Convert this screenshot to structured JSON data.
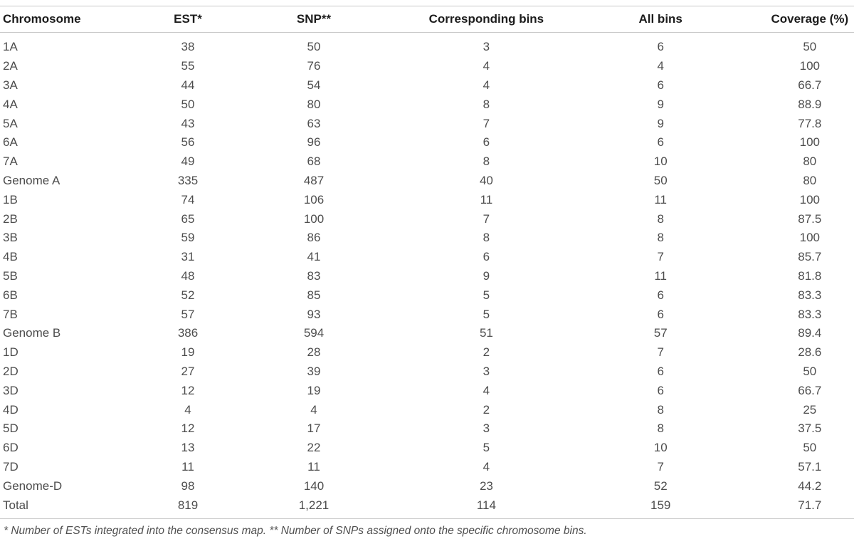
{
  "table": {
    "columns": [
      {
        "key": "chromosome",
        "label": "Chromosome"
      },
      {
        "key": "est",
        "label": "EST*"
      },
      {
        "key": "snp",
        "label": "SNP**"
      },
      {
        "key": "corresponding-bins",
        "label": "Corresponding bins"
      },
      {
        "key": "all-bins",
        "label": "All bins"
      },
      {
        "key": "coverage",
        "label": "Coverage (%)"
      }
    ],
    "rows": [
      [
        "1A",
        "38",
        "50",
        "3",
        "6",
        "50"
      ],
      [
        "2A",
        "55",
        "76",
        "4",
        "4",
        "100"
      ],
      [
        "3A",
        "44",
        "54",
        "4",
        "6",
        "66.7"
      ],
      [
        "4A",
        "50",
        "80",
        "8",
        "9",
        "88.9"
      ],
      [
        "5A",
        "43",
        "63",
        "7",
        "9",
        "77.8"
      ],
      [
        "6A",
        "56",
        "96",
        "6",
        "6",
        "100"
      ],
      [
        "7A",
        "49",
        "68",
        "8",
        "10",
        "80"
      ],
      [
        "Genome A",
        "335",
        "487",
        "40",
        "50",
        "80"
      ],
      [
        "1B",
        "74",
        "106",
        "11",
        "11",
        "100"
      ],
      [
        "2B",
        "65",
        "100",
        "7",
        "8",
        "87.5"
      ],
      [
        "3B",
        "59",
        "86",
        "8",
        "8",
        "100"
      ],
      [
        "4B",
        "31",
        "41",
        "6",
        "7",
        "85.7"
      ],
      [
        "5B",
        "48",
        "83",
        "9",
        "11",
        "81.8"
      ],
      [
        "6B",
        "52",
        "85",
        "5",
        "6",
        "83.3"
      ],
      [
        "7B",
        "57",
        "93",
        "5",
        "6",
        "83.3"
      ],
      [
        "Genome B",
        "386",
        "594",
        "51",
        "57",
        "89.4"
      ],
      [
        "1D",
        "19",
        "28",
        "2",
        "7",
        "28.6"
      ],
      [
        "2D",
        "27",
        "39",
        "3",
        "6",
        "50"
      ],
      [
        "3D",
        "12",
        "19",
        "4",
        "6",
        "66.7"
      ],
      [
        "4D",
        "4",
        "4",
        "2",
        "8",
        "25"
      ],
      [
        "5D",
        "12",
        "17",
        "3",
        "8",
        "37.5"
      ],
      [
        "6D",
        "13",
        "22",
        "5",
        "10",
        "50"
      ],
      [
        "7D",
        "11",
        "11",
        "4",
        "7",
        "57.1"
      ],
      [
        "Genome-D",
        "98",
        "140",
        "23",
        "52",
        "44.2"
      ],
      [
        "Total",
        "819",
        "1,221",
        "114",
        "159",
        "71.7"
      ]
    ],
    "footnote": "* Number of ESTs integrated into the consensus map. ** Number of SNPs assigned onto the specific chromosome bins."
  },
  "colors": {
    "header_text": "#1c1c1c",
    "body_text": "#4d4d4d",
    "rule": "#c8c8c8",
    "background": "#ffffff"
  }
}
